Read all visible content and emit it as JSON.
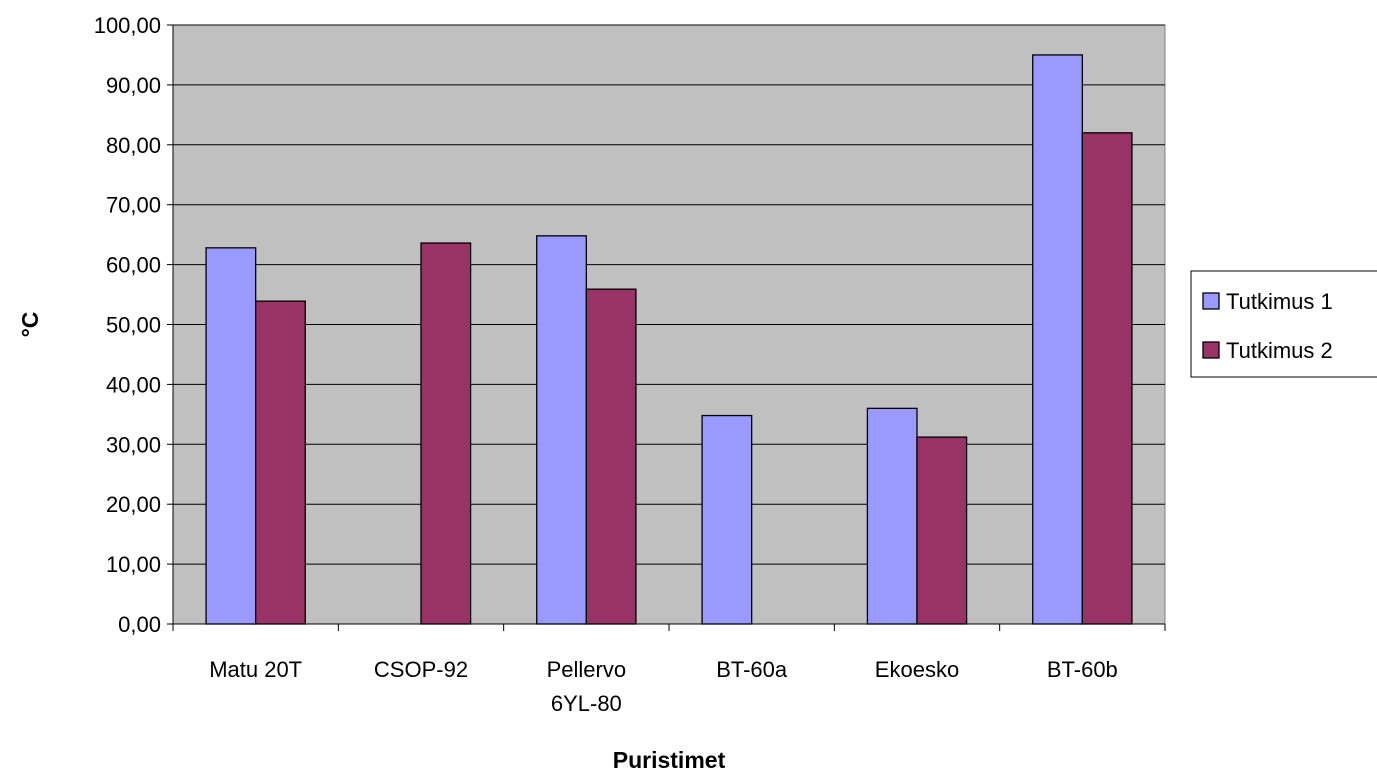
{
  "chart_data": {
    "type": "bar",
    "title": "",
    "xlabel": "Puristimet",
    "ylabel": "°C",
    "ylim": [
      0,
      100
    ],
    "y_ticks": [
      "0,00",
      "10,00",
      "20,00",
      "30,00",
      "40,00",
      "50,00",
      "60,00",
      "70,00",
      "80,00",
      "90,00",
      "100,00"
    ],
    "categories": [
      [
        "Matu 20T"
      ],
      [
        "CSOP-92"
      ],
      [
        "Pellervo",
        "6YL-80"
      ],
      [
        "BT-60a"
      ],
      [
        "Ekoesko"
      ],
      [
        "BT-60b"
      ]
    ],
    "series": [
      {
        "name": "Tutkimus 1",
        "color": "#9999ff",
        "values": [
          62.8,
          null,
          64.8,
          34.8,
          36.0,
          95.0
        ]
      },
      {
        "name": "Tutkimus 2",
        "color": "#993366",
        "values": [
          53.9,
          63.6,
          55.9,
          null,
          31.2,
          82.0
        ]
      }
    ],
    "grid": true,
    "plot_background": "#c0c0c0",
    "legend_position": "right"
  }
}
